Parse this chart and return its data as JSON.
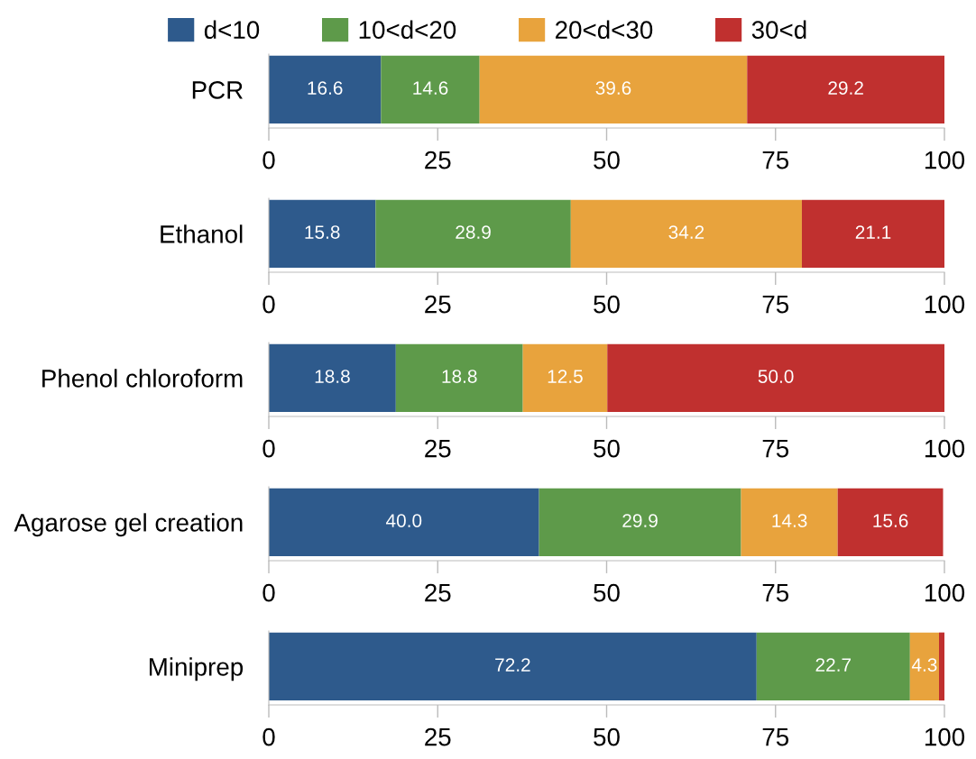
{
  "chart_data": [
    {
      "type": "bar",
      "orientation": "horizontal",
      "stacked": true,
      "categories": [
        "PCR"
      ],
      "legend": "top",
      "xlim": [
        0,
        100
      ],
      "xticks": [
        0,
        25,
        50,
        75,
        100
      ],
      "series": [
        {
          "name": "d<10",
          "color": "#2e5a8c",
          "values": [
            16.6
          ],
          "value_labels": [
            "16.6"
          ]
        },
        {
          "name": "10<d<20",
          "color": "#5e9a4a",
          "values": [
            14.6
          ],
          "value_labels": [
            "14.6"
          ]
        },
        {
          "name": "20<d<30",
          "color": "#e8a33d",
          "values": [
            39.6
          ],
          "value_labels": [
            "39.6"
          ]
        },
        {
          "name": "30<d",
          "color": "#c0302f",
          "values": [
            29.2
          ],
          "value_labels": [
            "29.2"
          ]
        }
      ]
    },
    {
      "type": "bar",
      "orientation": "horizontal",
      "stacked": true,
      "categories": [
        "Ethanol"
      ],
      "xlim": [
        0,
        100
      ],
      "xticks": [
        0,
        25,
        50,
        75,
        100
      ],
      "series": [
        {
          "color": "#2e5a8c",
          "values": [
            15.8
          ],
          "value_labels": [
            "15.8"
          ]
        },
        {
          "color": "#5e9a4a",
          "values": [
            28.9
          ],
          "value_labels": [
            "28.9"
          ]
        },
        {
          "color": "#e8a33d",
          "values": [
            34.2
          ],
          "value_labels": [
            "34.2"
          ]
        },
        {
          "color": "#c0302f",
          "values": [
            21.1
          ],
          "value_labels": [
            "21.1"
          ]
        }
      ]
    },
    {
      "type": "bar",
      "orientation": "horizontal",
      "stacked": true,
      "categories": [
        "Phenol chloroform"
      ],
      "xlim": [
        0,
        100
      ],
      "xticks": [
        0,
        25,
        50,
        75,
        100
      ],
      "series": [
        {
          "color": "#2e5a8c",
          "values": [
            18.8
          ],
          "value_labels": [
            "18.8"
          ]
        },
        {
          "color": "#5e9a4a",
          "values": [
            18.8
          ],
          "value_labels": [
            "18.8"
          ]
        },
        {
          "color": "#e8a33d",
          "values": [
            12.5
          ],
          "value_labels": [
            "12.5"
          ]
        },
        {
          "color": "#c0302f",
          "values": [
            50.0
          ],
          "value_labels": [
            "50.0"
          ]
        }
      ]
    },
    {
      "type": "bar",
      "orientation": "horizontal",
      "stacked": true,
      "categories": [
        "Agarose gel creation"
      ],
      "xlim": [
        0,
        100
      ],
      "xticks": [
        0,
        25,
        50,
        75,
        100
      ],
      "series": [
        {
          "color": "#2e5a8c",
          "values": [
            40.0
          ],
          "value_labels": [
            "40.0"
          ]
        },
        {
          "color": "#5e9a4a",
          "values": [
            29.9
          ],
          "value_labels": [
            "29.9"
          ]
        },
        {
          "color": "#e8a33d",
          "values": [
            14.3
          ],
          "value_labels": [
            "14.3"
          ]
        },
        {
          "color": "#c0302f",
          "values": [
            15.6
          ],
          "value_labels": [
            "15.6"
          ]
        }
      ]
    },
    {
      "type": "bar",
      "orientation": "horizontal",
      "stacked": true,
      "categories": [
        "Miniprep"
      ],
      "xlim": [
        0,
        100
      ],
      "xticks": [
        0,
        25,
        50,
        75,
        100
      ],
      "series": [
        {
          "color": "#2e5a8c",
          "values": [
            72.2
          ],
          "value_labels": [
            "72.2"
          ]
        },
        {
          "color": "#5e9a4a",
          "values": [
            22.7
          ],
          "value_labels": [
            "22.7"
          ]
        },
        {
          "color": "#e8a33d",
          "values": [
            4.3
          ],
          "value_labels": [
            "4.3"
          ]
        },
        {
          "color": "#c0302f",
          "values": [
            0.8
          ],
          "value_labels": [
            null
          ]
        }
      ]
    }
  ]
}
